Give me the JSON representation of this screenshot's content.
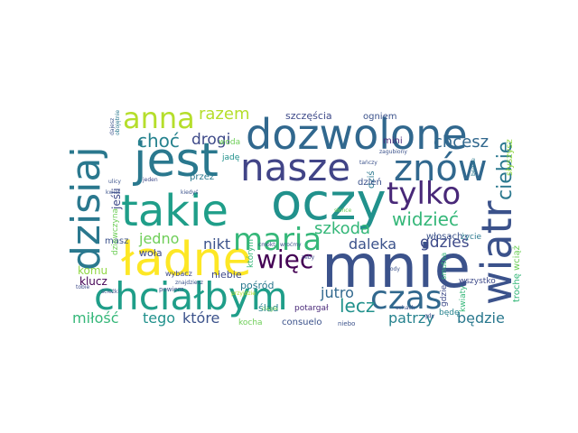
{
  "words": [
    {
      "text": "dozwolone",
      "color": "#31688e"
    },
    {
      "text": "jest",
      "color": "#2a788e"
    },
    {
      "text": "oczy",
      "color": "#21918c"
    },
    {
      "text": "mnie",
      "color": "#3b528b"
    },
    {
      "text": "ładne",
      "color": "#fde725"
    },
    {
      "text": "takie",
      "color": "#1f9e89"
    },
    {
      "text": "nasze",
      "color": "#414487"
    },
    {
      "text": "znów",
      "color": "#31688e"
    },
    {
      "text": "dzisiaj",
      "color": "#2a788e"
    },
    {
      "text": "chciałbym",
      "color": "#1f9e89"
    },
    {
      "text": "wiatr",
      "color": "#3b528b"
    },
    {
      "text": "tylko",
      "color": "#482878"
    },
    {
      "text": "maria",
      "color": "#35b779"
    },
    {
      "text": "anna",
      "color": "#b5de2b"
    },
    {
      "text": "czas",
      "color": "#31688e"
    },
    {
      "text": "więc",
      "color": "#440154"
    },
    {
      "text": "ciebie",
      "color": "#2a788e"
    },
    {
      "text": "widzieć",
      "color": "#35b779"
    },
    {
      "text": "choć",
      "color": "#26828e"
    },
    {
      "text": "razem",
      "color": "#b5de2b"
    },
    {
      "text": "chcesz",
      "color": "#31688e"
    },
    {
      "text": "lecz",
      "color": "#21918c"
    },
    {
      "text": "szkoda",
      "color": "#35b779"
    },
    {
      "text": "drogi",
      "color": "#3e4a89"
    },
    {
      "text": "jedno",
      "color": "#6ece58"
    },
    {
      "text": "nikt",
      "color": "#3b528b"
    },
    {
      "text": "daleka",
      "color": "#3b528b"
    },
    {
      "text": "gdzieś",
      "color": "#3e4a89"
    },
    {
      "text": "jutro",
      "color": "#31688e"
    },
    {
      "text": "miłość",
      "color": "#35b779"
    },
    {
      "text": "tego",
      "color": "#21918c"
    },
    {
      "text": "które",
      "color": "#3b528b"
    },
    {
      "text": "patrzy",
      "color": "#26828e"
    },
    {
      "text": "będzie",
      "color": "#2a788e"
    },
    {
      "text": "szczęścia",
      "color": "#3e4a89"
    },
    {
      "text": "ogniem",
      "color": "#3b528b"
    },
    {
      "text": "mini",
      "color": "#482878"
    },
    {
      "text": "komu",
      "color": "#90d743"
    },
    {
      "text": "klucz",
      "color": "#440154"
    },
    {
      "text": "consuelo",
      "color": "#3b528b"
    },
    {
      "text": "woła",
      "color": "#3e4a89"
    },
    {
      "text": "pośród",
      "color": "#2a788e"
    },
    {
      "text": "ślad",
      "color": "#26828e"
    },
    {
      "text": "słyszysz",
      "color": "#90d743"
    },
    {
      "text": "trochę",
      "color": "#35b779"
    },
    {
      "text": "wciąż",
      "color": "#6ece58"
    },
    {
      "text": "jeśli",
      "color": "#3e4a89"
    },
    {
      "text": "dziś",
      "color": "#2a788e"
    },
    {
      "text": "dzień",
      "color": "#3b528b"
    },
    {
      "text": "woda",
      "color": "#6ece58"
    },
    {
      "text": "przez",
      "color": "#2a788e"
    },
    {
      "text": "jadę",
      "color": "#21918c"
    },
    {
      "text": "będę",
      "color": "#26828e"
    },
    {
      "text": "kwiaty",
      "color": "#35b779"
    },
    {
      "text": "gdzie",
      "color": "#3e4a89"
    },
    {
      "text": "włosach",
      "color": "#3b528b"
    },
    {
      "text": "życie",
      "color": "#2a788e"
    },
    {
      "text": "niebie",
      "color": "#3e4a89"
    },
    {
      "text": "masz",
      "color": "#3b528b"
    },
    {
      "text": "dziewczyna",
      "color": "#6ece58"
    },
    {
      "text": "wszystko",
      "color": "#3e4a89"
    },
    {
      "text": "smutna",
      "color": "#35b779"
    },
    {
      "text": "potargał",
      "color": "#482878"
    },
    {
      "text": "kocha",
      "color": "#6ece58"
    },
    {
      "text": "niebo",
      "color": "#3b528b"
    },
    {
      "text": "którym",
      "color": "#35b779"
    },
    {
      "text": "wybacz",
      "color": "#3e4a89"
    },
    {
      "text": "powiem",
      "color": "#3b528b"
    },
    {
      "text": "kiedyś",
      "color": "#3b528b"
    },
    {
      "text": "przyjdzie",
      "color": "#b5de2b"
    },
    {
      "text": "znajdziesz",
      "color": "#3b528b"
    },
    {
      "text": "dajesz",
      "color": "#3b528b"
    },
    {
      "text": "ciągle",
      "color": "#6ece58"
    },
    {
      "text": "obojętnie",
      "color": "#2a788e"
    },
    {
      "text": "będzie",
      "color": "#2a788e"
    },
    {
      "text": "zagubiony",
      "color": "#3b528b"
    },
    {
      "text": "tańczy",
      "color": "#3b528b"
    },
    {
      "text": "słońce",
      "color": "#6ece58"
    },
    {
      "text": "ścieżki",
      "color": "#3b528b"
    },
    {
      "text": "ulicy",
      "color": "#3b528b"
    },
    {
      "text": "jeden",
      "color": "#3e4a89"
    },
    {
      "text": "kwiat",
      "color": "#3b528b"
    },
    {
      "text": "tobie",
      "color": "#3e4a89"
    },
    {
      "text": "cmokt",
      "color": "#3e4a89"
    },
    {
      "text": "wroćmy",
      "color": "#3b528b"
    },
    {
      "text": "zeby",
      "color": "#3e4a89"
    },
    {
      "text": "mody",
      "color": "#3b528b"
    },
    {
      "text": "ochach",
      "color": "#3b528b"
    },
    {
      "text": "gdy",
      "color": "#3e4a89"
    }
  ]
}
